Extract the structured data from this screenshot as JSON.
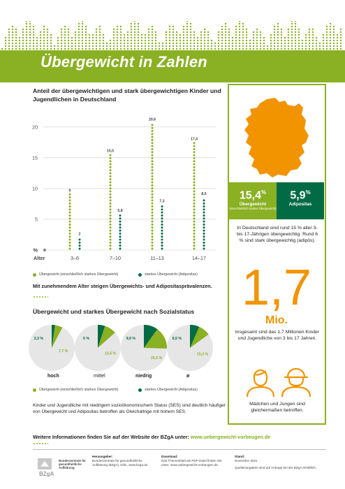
{
  "header": {
    "title": "Übergewicht in Zahlen"
  },
  "chart_data": {
    "type": "bar",
    "title": "Anteil der übergewichtigen und stark übergewichtigen Kinder und Jugendlichen in Deutschland",
    "xlabel": "Alter",
    "ylabel": "%",
    "categories": [
      "3–6",
      "7–10",
      "11–13",
      "14–17"
    ],
    "series": [
      {
        "name": "Übergewicht (einschließlich starkes Übergewicht)",
        "values": [
          9,
          15.5,
          20.6,
          17.4
        ],
        "color": "#8ab023"
      },
      {
        "name": "starkes Übergewicht (Adipositas)",
        "values": [
          2,
          5.8,
          7.3,
          8.5
        ],
        "color": "#006b45"
      }
    ],
    "data_labels": [
      [
        "9",
        "15,5",
        "20,6",
        "17,4"
      ],
      [
        "2",
        "5,8",
        "7,3",
        "8,5"
      ]
    ],
    "y_ticks": [
      5,
      10,
      15,
      20
    ],
    "y_tick_labels": [
      "5",
      "10",
      "15",
      "20"
    ],
    "ylim": [
      0,
      21
    ],
    "grid": true,
    "legend_position": "bottom"
  },
  "insight_1": "Mit zunehmendem Alter steigen Übergewichts- und Adipositasprävalenzen.",
  "pie_section": {
    "title": "Übergewicht und starkes Übergewicht nach Sozialstatus",
    "groups": [
      {
        "label": "hoch",
        "overweight_label": "7,7 %",
        "obese_label": "2,3 %",
        "overweight": 7.7,
        "obese": 2.3
      },
      {
        "label": "mittel",
        "overweight_label": "13,5 %",
        "obese_label": "5 %",
        "overweight": 13.5,
        "obese": 5
      },
      {
        "label": "niedrig",
        "overweight_label": "25,5 %",
        "obese_label": "9,9 %",
        "overweight": 25.5,
        "obese": 9.9
      },
      {
        "label": "ø",
        "overweight_label": "15,0 %",
        "obese_label": "6,5 %",
        "overweight": 15.0,
        "obese": 6.5
      }
    ],
    "legend": [
      "Übergewicht (einschließlich starkes Übergewicht)",
      "starkes Übergewicht (Adipositas)"
    ]
  },
  "insight_2": "Kinder und Jugendliche mit niedrigem sozioökonomischem Status (SES) sind deutlich häufiger von Übergewicht und Adipositas betroffen als Gleichaltrige mit hohem SES.",
  "more_info": {
    "text": "Weitere Informationen finden Sie auf der Website der BZgA unter: ",
    "link": "www.uebergewicht-vorbeugen.de"
  },
  "side": {
    "overweight_value": "15,4",
    "overweight_unit": "%",
    "overweight_label": "Übergewicht",
    "overweight_sub": "(einschließlich starkes Übergewicht)",
    "obese_value": "5,9",
    "obese_unit": "%",
    "obese_label": "Adipositas",
    "stat_text": "In Deutschland sind rund 15 % aller 3- bis 17-Jährigen übergewichtig. Rund 6 % sind stark übergewichtig (adipös).",
    "big_number": "1,7",
    "big_unit": "Mio.",
    "big_text": "Insgesamt sind das 1,7 Millionen Kinder und Jugendliche von 3 bis 17 Jahren.",
    "people_text": "Mädchen und Jungen sind gleichermaßen betroffen.",
    "accent_orange": "#f29400",
    "accent_green": "#8ab023",
    "accent_darkgreen": "#006b45"
  },
  "footer": {
    "logo_text": "BZgA",
    "org": "Bundeszentrale für gesundheitliche Aufklärung",
    "publisher_head": "Herausgeber:",
    "publisher": "Bundeszentrale für gesundheitliche Aufklärung (BZgA), Köln, www.bzga.de",
    "download_head": "Download:",
    "download": "Das Themenblatt als PDF-Datei finden Sie unter: www.uebergewicht-vorbeugen.de",
    "date_head": "Stand:",
    "date": "November 2021",
    "sources": "Quellenangaben sind auf Anfrage bei der BZgA erhältlich."
  }
}
